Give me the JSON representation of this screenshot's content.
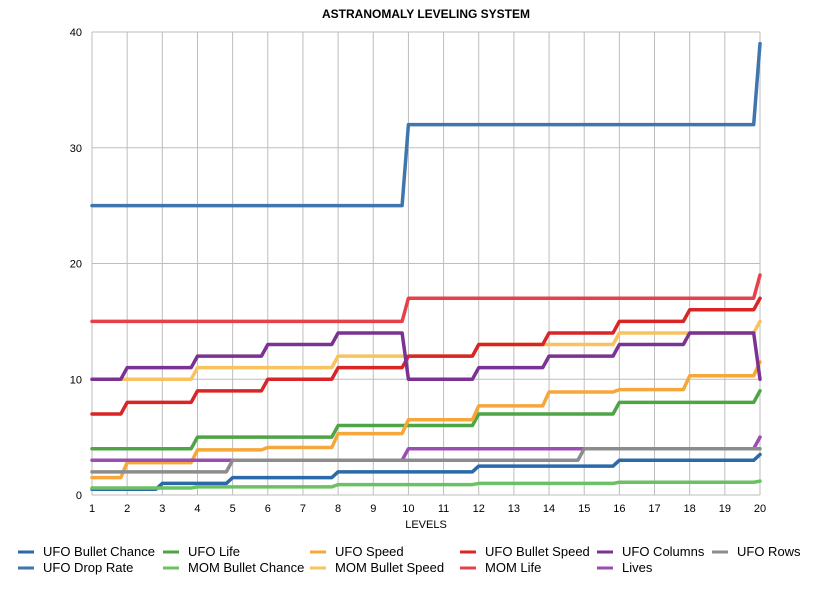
{
  "chart_data": {
    "type": "line",
    "title": "ASTRANOMALY LEVELING SYSTEM",
    "xlabel": "LEVELS",
    "ylabel": "",
    "x": [
      1,
      2,
      3,
      4,
      5,
      6,
      7,
      8,
      9,
      10,
      11,
      12,
      13,
      14,
      15,
      16,
      17,
      18,
      19,
      20
    ],
    "x_ticks": [
      "1",
      "2",
      "3",
      "4",
      "5",
      "6",
      "7",
      "8",
      "9",
      "10",
      "11",
      "12",
      "13",
      "14",
      "15",
      "16",
      "17",
      "18",
      "19",
      "20"
    ],
    "ylim": [
      0,
      40
    ],
    "y_ticks": [
      "0",
      "10",
      "20",
      "30",
      "40"
    ],
    "grid": true,
    "legend_position": "bottom",
    "series": [
      {
        "name": "UFO Bullet Chance",
        "color": "#2b6aa8",
        "values": [
          0.5,
          0.5,
          1,
          1,
          1.5,
          1.5,
          1.5,
          2,
          2,
          2,
          2,
          2.5,
          2.5,
          2.5,
          2.5,
          3,
          3,
          3,
          3,
          3.5
        ]
      },
      {
        "name": "UFO Drop Rate",
        "color": "#3f76ad",
        "values": [
          25,
          25,
          25,
          25,
          25,
          25,
          25,
          25,
          25,
          32,
          32,
          32,
          32,
          32,
          32,
          32,
          32,
          32,
          32,
          39
        ]
      },
      {
        "name": "UFO Life",
        "color": "#4ea545",
        "values": [
          4,
          4,
          4,
          5,
          5,
          5,
          5,
          6,
          6,
          6,
          6,
          7,
          7,
          7,
          7,
          8,
          8,
          8,
          8,
          9
        ]
      },
      {
        "name": "MOM Bullet Chance",
        "color": "#6cc163",
        "values": [
          0.6,
          0.6,
          0.6,
          0.7,
          0.7,
          0.7,
          0.7,
          0.9,
          0.9,
          0.9,
          0.9,
          1,
          1,
          1,
          1,
          1.1,
          1.1,
          1.1,
          1.1,
          1.2
        ]
      },
      {
        "name": "UFO Speed",
        "color": "#f6a73a",
        "values": [
          1.5,
          2.8,
          2.8,
          3.9,
          3.9,
          4.1,
          4.1,
          5.3,
          5.3,
          6.5,
          6.5,
          7.7,
          7.7,
          8.9,
          8.9,
          9.1,
          9.1,
          10.3,
          10.3,
          11.5
        ]
      },
      {
        "name": "MOM Bullet Speed",
        "color": "#f8c25e",
        "values": [
          10,
          10,
          10,
          11,
          11,
          11,
          11,
          12,
          12,
          12,
          12,
          13,
          13,
          13,
          13,
          14,
          14,
          14,
          14,
          15
        ]
      },
      {
        "name": "UFO Bullet Speed",
        "color": "#d92525",
        "values": [
          7,
          8,
          8,
          9,
          9,
          10,
          10,
          11,
          11,
          12,
          12,
          13,
          13,
          14,
          14,
          15,
          15,
          16,
          16,
          17
        ]
      },
      {
        "name": "MOM Life",
        "color": "#e6404a",
        "values": [
          15,
          15,
          15,
          15,
          15,
          15,
          15,
          15,
          15,
          17,
          17,
          17,
          17,
          17,
          17,
          17,
          17,
          17,
          17,
          19
        ]
      },
      {
        "name": "UFO Columns",
        "color": "#7b3293",
        "values": [
          10,
          11,
          11,
          12,
          12,
          13,
          13,
          14,
          14,
          10,
          10,
          11,
          11,
          12,
          12,
          13,
          13,
          14,
          14,
          10
        ]
      },
      {
        "name": "Lives",
        "color": "#9b4db2",
        "values": [
          3,
          3,
          3,
          3,
          3,
          3,
          3,
          3,
          3,
          4,
          4,
          4,
          4,
          4,
          4,
          4,
          4,
          4,
          4,
          5
        ]
      },
      {
        "name": "UFO Rows",
        "color": "#8c8c8c",
        "values": [
          2,
          2,
          2,
          2,
          3,
          3,
          3,
          3,
          3,
          3,
          3,
          3,
          3,
          3,
          4,
          4,
          4,
          4,
          4,
          4
        ]
      }
    ]
  }
}
